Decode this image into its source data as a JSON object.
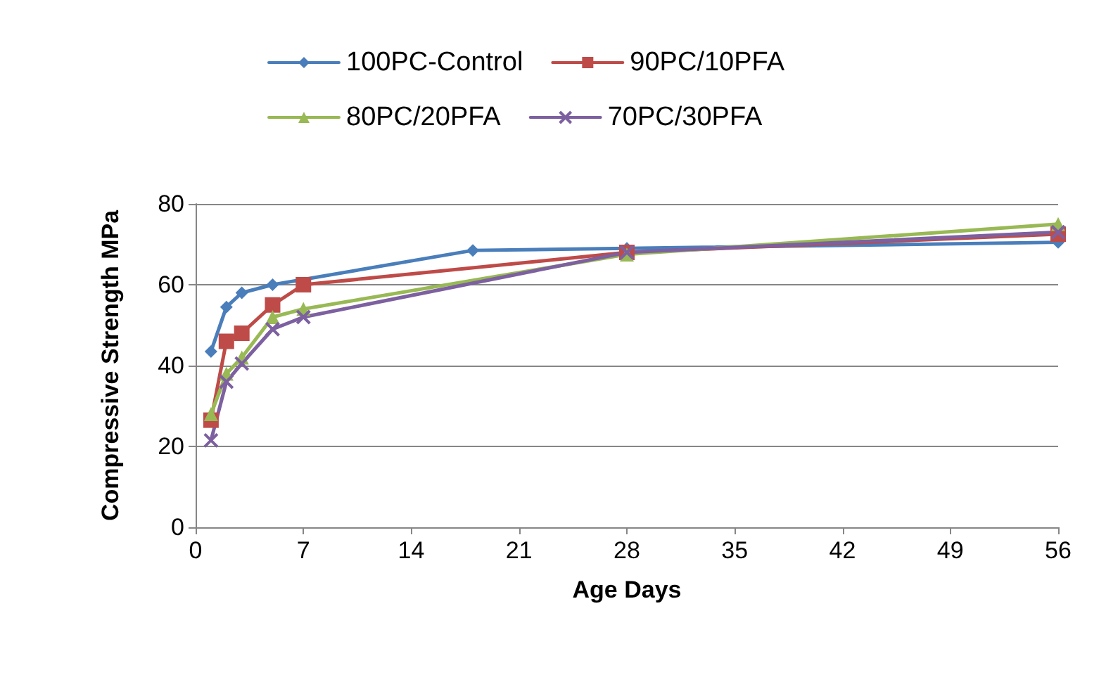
{
  "chart_data": {
    "type": "line",
    "xlabel": "Age Days",
    "ylabel": "Compressive Strength MPa",
    "xlim": [
      0,
      56
    ],
    "xticks": [
      0,
      7,
      14,
      21,
      28,
      35,
      42,
      49,
      56
    ],
    "ylim": [
      0,
      80
    ],
    "yticks": [
      0,
      20,
      40,
      60,
      80
    ],
    "grid": "y",
    "legend": "top",
    "series": [
      {
        "name": "100PC-Control",
        "color": "#4a7ebb",
        "marker": "diamond",
        "x": [
          1,
          2,
          3,
          5,
          18,
          28,
          56
        ],
        "values": [
          43.5,
          54.5,
          58,
          60,
          68.5,
          69,
          70.5
        ]
      },
      {
        "name": "90PC/10PFA",
        "color": "#be4b48",
        "marker": "square",
        "x": [
          1,
          2,
          3,
          5,
          7,
          28,
          56
        ],
        "values": [
          26.5,
          46,
          48,
          55,
          60,
          68,
          72.5
        ]
      },
      {
        "name": "80PC/20PFA",
        "color": "#98b954",
        "marker": "triangle",
        "x": [
          1,
          2,
          3,
          5,
          7,
          28,
          56
        ],
        "values": [
          28,
          38,
          42,
          52,
          54,
          67.5,
          75
        ]
      },
      {
        "name": "70PC/30PFA",
        "color": "#7d60a0",
        "marker": "cross",
        "x": [
          1,
          2,
          3,
          5,
          7,
          28,
          56
        ],
        "values": [
          21.5,
          36,
          40.5,
          49,
          52,
          68,
          73
        ]
      }
    ]
  }
}
